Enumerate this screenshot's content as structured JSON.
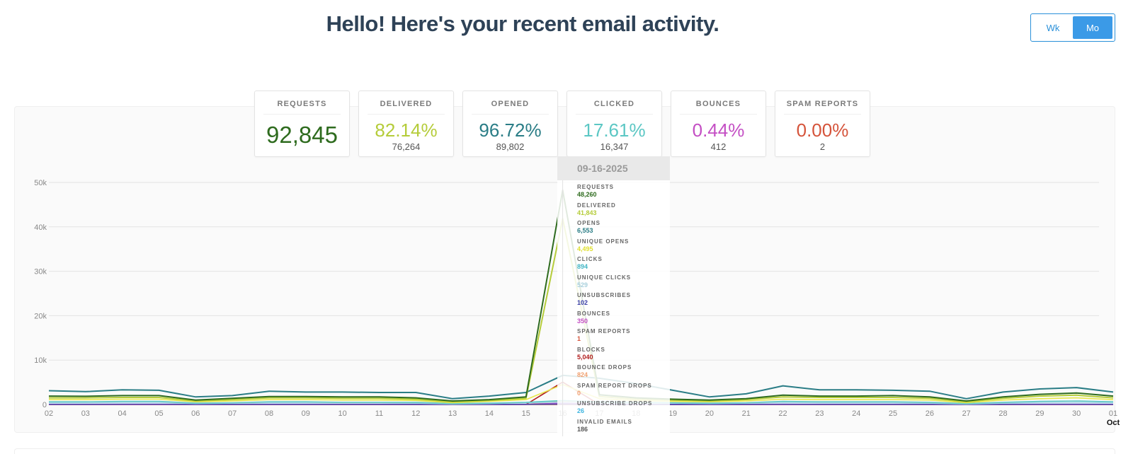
{
  "header": {
    "title": "Hello! Here's your recent email activity."
  },
  "toggle": {
    "week_label": "Wk",
    "month_label": "Mo",
    "selected": "Mo",
    "accent": "#3b9ae7"
  },
  "cards": [
    {
      "label": "REQUESTS",
      "value": "92,845",
      "sub": "",
      "color": "#2e6b1e"
    },
    {
      "label": "DELIVERED",
      "value": "82.14%",
      "sub": "76,264",
      "color": "#b5cc3a"
    },
    {
      "label": "OPENED",
      "value": "96.72%",
      "sub": "89,802",
      "color": "#2a7d86"
    },
    {
      "label": "CLICKED",
      "value": "17.61%",
      "sub": "16,347",
      "color": "#5cc7c4"
    },
    {
      "label": "BOUNCES",
      "value": "0.44%",
      "sub": "412",
      "color": "#c44fc4"
    },
    {
      "label": "SPAM REPORTS",
      "value": "0.00%",
      "sub": "2",
      "color": "#d5543b"
    }
  ],
  "chart_data": {
    "type": "line",
    "x": [
      "02",
      "03",
      "04",
      "05",
      "06",
      "07",
      "08",
      "09",
      "10",
      "11",
      "12",
      "13",
      "14",
      "15",
      "16",
      "17",
      "18",
      "19",
      "20",
      "21",
      "22",
      "23",
      "24",
      "25",
      "26",
      "27",
      "28",
      "29",
      "30",
      "01"
    ],
    "x_month_label": "Oct",
    "y_ticks": [
      "0",
      "10k",
      "20k",
      "30k",
      "40k",
      "50k"
    ],
    "ylim": [
      0,
      52000
    ],
    "grid": true,
    "series": [
      {
        "name": "Requests",
        "color": "#2e6b1e",
        "values": [
          1900,
          1850,
          2000,
          2000,
          1000,
          1400,
          1800,
          1800,
          1700,
          1700,
          1500,
          800,
          1100,
          1700,
          48260,
          2200,
          1500,
          1200,
          1000,
          1300,
          2100,
          1900,
          1900,
          2000,
          1700,
          800,
          1700,
          2300,
          2600,
          1900
        ]
      },
      {
        "name": "Delivered",
        "color": "#b5cc3a",
        "values": [
          1500,
          1500,
          1600,
          1600,
          800,
          1100,
          1500,
          1500,
          1400,
          1400,
          1200,
          600,
          900,
          1400,
          41843,
          1800,
          1200,
          1000,
          800,
          1100,
          1700,
          1600,
          1600,
          1600,
          1400,
          600,
          1400,
          1900,
          2100,
          1500
        ]
      },
      {
        "name": "Opens",
        "color": "#2a7d86",
        "values": [
          3100,
          2900,
          3300,
          3200,
          1700,
          2000,
          3000,
          2800,
          2800,
          2700,
          2700,
          1300,
          1900,
          2700,
          6553,
          5900,
          4700,
          3200,
          1700,
          2400,
          4200,
          3300,
          3300,
          3200,
          3000,
          1300,
          2800,
          3500,
          3800,
          2800
        ]
      },
      {
        "name": "Unique Opens",
        "color": "#e8e84a",
        "values": [
          1100,
          1100,
          1200,
          1200,
          600,
          800,
          1100,
          1100,
          1000,
          1000,
          900,
          400,
          700,
          1100,
          4495,
          1300,
          900,
          700,
          600,
          800,
          1200,
          1100,
          1100,
          1100,
          1000,
          400,
          1000,
          1300,
          1500,
          1100
        ]
      },
      {
        "name": "Clicks",
        "color": "#5cc7c4",
        "values": [
          600,
          600,
          700,
          700,
          300,
          400,
          600,
          600,
          500,
          500,
          500,
          200,
          300,
          500,
          894,
          600,
          500,
          400,
          300,
          400,
          700,
          600,
          600,
          600,
          500,
          200,
          500,
          700,
          800,
          600
        ]
      },
      {
        "name": "Unique Clicks",
        "color": "#a8d8e6",
        "values": [
          400,
          400,
          500,
          500,
          200,
          300,
          400,
          400,
          400,
          400,
          300,
          100,
          200,
          400,
          529,
          400,
          300,
          300,
          200,
          300,
          500,
          400,
          400,
          400,
          300,
          100,
          300,
          500,
          500,
          400
        ]
      },
      {
        "name": "Unsubscribes",
        "color": "#4a4fb8",
        "values": [
          50,
          50,
          60,
          60,
          30,
          40,
          50,
          50,
          50,
          50,
          40,
          20,
          30,
          50,
          102,
          50,
          40,
          30,
          30,
          40,
          60,
          50,
          50,
          50,
          40,
          20,
          40,
          60,
          70,
          50
        ]
      },
      {
        "name": "Bounces",
        "color": "#c44fc4",
        "values": [
          20,
          20,
          20,
          20,
          10,
          10,
          20,
          20,
          20,
          20,
          10,
          10,
          10,
          20,
          350,
          20,
          10,
          10,
          10,
          10,
          20,
          20,
          20,
          20,
          10,
          10,
          10,
          20,
          20,
          20
        ]
      },
      {
        "name": "Spam Reports",
        "color": "#d5543b",
        "values": [
          0,
          0,
          0,
          0,
          0,
          0,
          0,
          0,
          0,
          0,
          0,
          0,
          0,
          0,
          1,
          0,
          0,
          0,
          0,
          0,
          1,
          0,
          0,
          0,
          0,
          0,
          0,
          0,
          0,
          0
        ]
      },
      {
        "name": "Blocks",
        "color": "#b01c1c",
        "values": [
          0,
          0,
          0,
          0,
          0,
          0,
          0,
          0,
          0,
          0,
          0,
          0,
          0,
          0,
          5040,
          0,
          0,
          0,
          0,
          0,
          0,
          0,
          0,
          0,
          0,
          0,
          0,
          0,
          0,
          0
        ]
      },
      {
        "name": "Bounce Drops",
        "color": "#f0b080",
        "values": [
          0,
          0,
          0,
          0,
          0,
          0,
          0,
          0,
          0,
          0,
          0,
          0,
          0,
          0,
          824,
          0,
          0,
          0,
          0,
          0,
          0,
          0,
          0,
          0,
          0,
          0,
          0,
          0,
          0,
          0
        ]
      },
      {
        "name": "Spam Report Drops",
        "color": "#f5a878",
        "values": [
          0,
          0,
          0,
          0,
          0,
          0,
          0,
          0,
          0,
          0,
          0,
          0,
          0,
          0,
          0,
          0,
          0,
          0,
          0,
          0,
          0,
          0,
          0,
          0,
          0,
          0,
          0,
          0,
          0,
          0
        ]
      },
      {
        "name": "Unsubscribe Drops",
        "color": "#3fb5e0",
        "values": [
          0,
          0,
          0,
          0,
          0,
          0,
          0,
          0,
          0,
          0,
          0,
          0,
          0,
          0,
          26,
          0,
          0,
          0,
          0,
          0,
          0,
          0,
          0,
          0,
          0,
          0,
          0,
          0,
          0,
          0
        ]
      },
      {
        "name": "Invalid Emails",
        "color": "#666666",
        "values": [
          10,
          10,
          10,
          10,
          5,
          5,
          10,
          10,
          10,
          10,
          10,
          5,
          5,
          10,
          186,
          10,
          10,
          5,
          5,
          5,
          10,
          10,
          10,
          10,
          10,
          5,
          10,
          10,
          10,
          10
        ]
      }
    ],
    "hover_index": 14
  },
  "tooltip": {
    "date": "09-16-2025",
    "items": [
      {
        "name": "REQUESTS",
        "value": "48,260",
        "color": "#2e6b1e"
      },
      {
        "name": "DELIVERED",
        "value": "41,843",
        "color": "#b5cc3a"
      },
      {
        "name": "OPENS",
        "value": "6,553",
        "color": "#2a7d86"
      },
      {
        "name": "UNIQUE OPENS",
        "value": "4,495",
        "color": "#e0e030"
      },
      {
        "name": "CLICKS",
        "value": "894",
        "color": "#3fb5c4"
      },
      {
        "name": "UNIQUE CLICKS",
        "value": "529",
        "color": "#a8d0dc"
      },
      {
        "name": "UNSUBSCRIBES",
        "value": "102",
        "color": "#3a3fa8"
      },
      {
        "name": "BOUNCES",
        "value": "350",
        "color": "#c44fc4"
      },
      {
        "name": "SPAM REPORTS",
        "value": "1",
        "color": "#d5543b"
      },
      {
        "name": "BLOCKS",
        "value": "5,040",
        "color": "#b01c1c"
      },
      {
        "name": "BOUNCE DROPS",
        "value": "824",
        "color": "#f0a070"
      },
      {
        "name": "SPAM REPORT DROPS",
        "value": "0",
        "color": "#f0a070"
      },
      {
        "name": "UNSUBSCRIBE DROPS",
        "value": "26",
        "color": "#3fb5e0"
      },
      {
        "name": "INVALID EMAILS",
        "value": "186",
        "color": "#555555"
      }
    ]
  }
}
